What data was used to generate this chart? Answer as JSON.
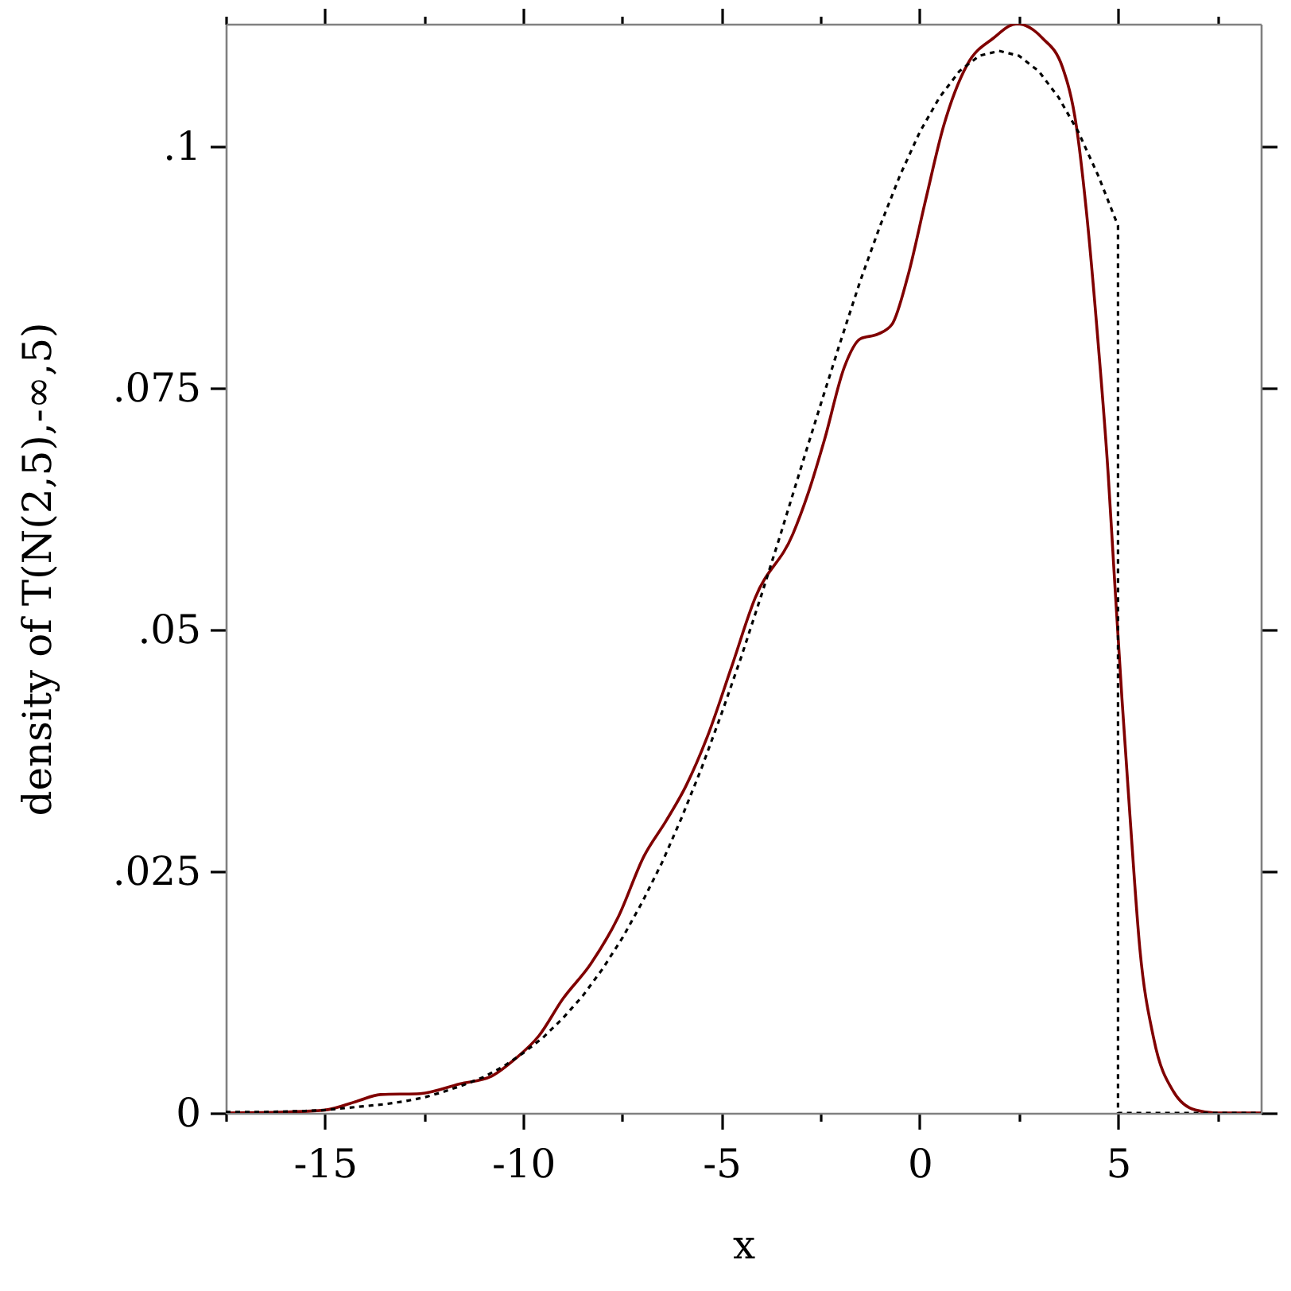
{
  "chart_data": {
    "type": "line",
    "xlabel": "x",
    "ylabel": "density of T(N(2,5),-∞,5)",
    "xlim": [
      -17.5,
      8.6
    ],
    "ylim": [
      0,
      0.1127
    ],
    "xticks": [
      {
        "value": -17.5,
        "label": null
      },
      -15,
      {
        "value": -12.5,
        "label": null
      },
      -10,
      {
        "value": -7.5,
        "label": null
      },
      -5,
      {
        "value": -2.5,
        "label": null
      },
      0,
      {
        "value": 2.5,
        "label": null
      },
      5,
      {
        "value": 7.5,
        "label": null
      }
    ],
    "yticks": [
      0,
      {
        "value": 0.025,
        "label": ".025"
      },
      {
        "value": 0.05,
        "label": ".05"
      },
      {
        "value": 0.075,
        "label": ".075"
      },
      {
        "value": 0.1,
        "label": ".1"
      }
    ],
    "series": [
      {
        "color": "#800000",
        "line_style": "solid",
        "x": [
          -17.5,
          -16,
          -15,
          -14.2,
          -13.6,
          -12.6,
          -11.6,
          -10.8,
          -10.2,
          -9.6,
          -9,
          -8.3,
          -7.6,
          -6.95,
          -6.4,
          -5.9,
          -5.35,
          -4.75,
          -4.15,
          -3.2,
          -2.8,
          -2.4,
          -1.9,
          -1.5,
          -1.05,
          -0.7,
          -0.3,
          0.15,
          0.6,
          1.2,
          1.85,
          2.45,
          3.1,
          3.6,
          3.95,
          4.2,
          4.5,
          4.75,
          4.9,
          5.1,
          5.3,
          5.55,
          5.9,
          6.4,
          6.95,
          7.5,
          8.6
        ],
        "values": [
          0,
          0.0001,
          0.0003,
          0.0012,
          0.0019,
          0.002,
          0.003,
          0.0038,
          0.0056,
          0.008,
          0.0118,
          0.0154,
          0.0203,
          0.0266,
          0.0302,
          0.0338,
          0.039,
          0.0461,
          0.0533,
          0.0599,
          0.0643,
          0.0697,
          0.0772,
          0.0801,
          0.0806,
          0.0816,
          0.0866,
          0.0945,
          0.1021,
          0.1085,
          0.1112,
          0.1127,
          0.1112,
          0.1082,
          0.1021,
          0.0934,
          0.0796,
          0.0662,
          0.056,
          0.0428,
          0.0308,
          0.017,
          0.0077,
          0.0022,
          0.0003,
          0,
          0
        ]
      },
      {
        "color": "#000000",
        "line_style": "dotted",
        "x": [
          -17.5,
          -16.5,
          -15.5,
          -15,
          -14.5,
          -14,
          -13.5,
          -13,
          -12.5,
          -12,
          -11.5,
          -11,
          -10.5,
          -10,
          -9.5,
          -9,
          -8.5,
          -8,
          -7.5,
          -7,
          -6.5,
          -6,
          -5.5,
          -5,
          -4.5,
          -4,
          -3.5,
          -3,
          -2.5,
          -2,
          -1.5,
          -1,
          -0.5,
          0,
          0.5,
          1,
          1.5,
          2,
          2.5,
          3,
          3.5,
          4,
          4.5,
          5,
          5,
          8.6
        ],
        "values": [
          0.0001,
          0.0001,
          0.0002,
          0.0003,
          0.0005,
          0.0007,
          0.0009,
          0.0012,
          0.0016,
          0.0022,
          0.0029,
          0.0037,
          0.0048,
          0.0062,
          0.0078,
          0.0098,
          0.0121,
          0.0149,
          0.0181,
          0.0218,
          0.0259,
          0.0306,
          0.0357,
          0.0413,
          0.0472,
          0.0535,
          0.06,
          0.0667,
          0.0733,
          0.0798,
          0.0861,
          0.0918,
          0.097,
          0.1015,
          0.1051,
          0.1078,
          0.1094,
          0.1099,
          0.1094,
          0.1078,
          0.1051,
          0.1015,
          0.097,
          0.0918,
          0,
          0
        ]
      }
    ]
  }
}
